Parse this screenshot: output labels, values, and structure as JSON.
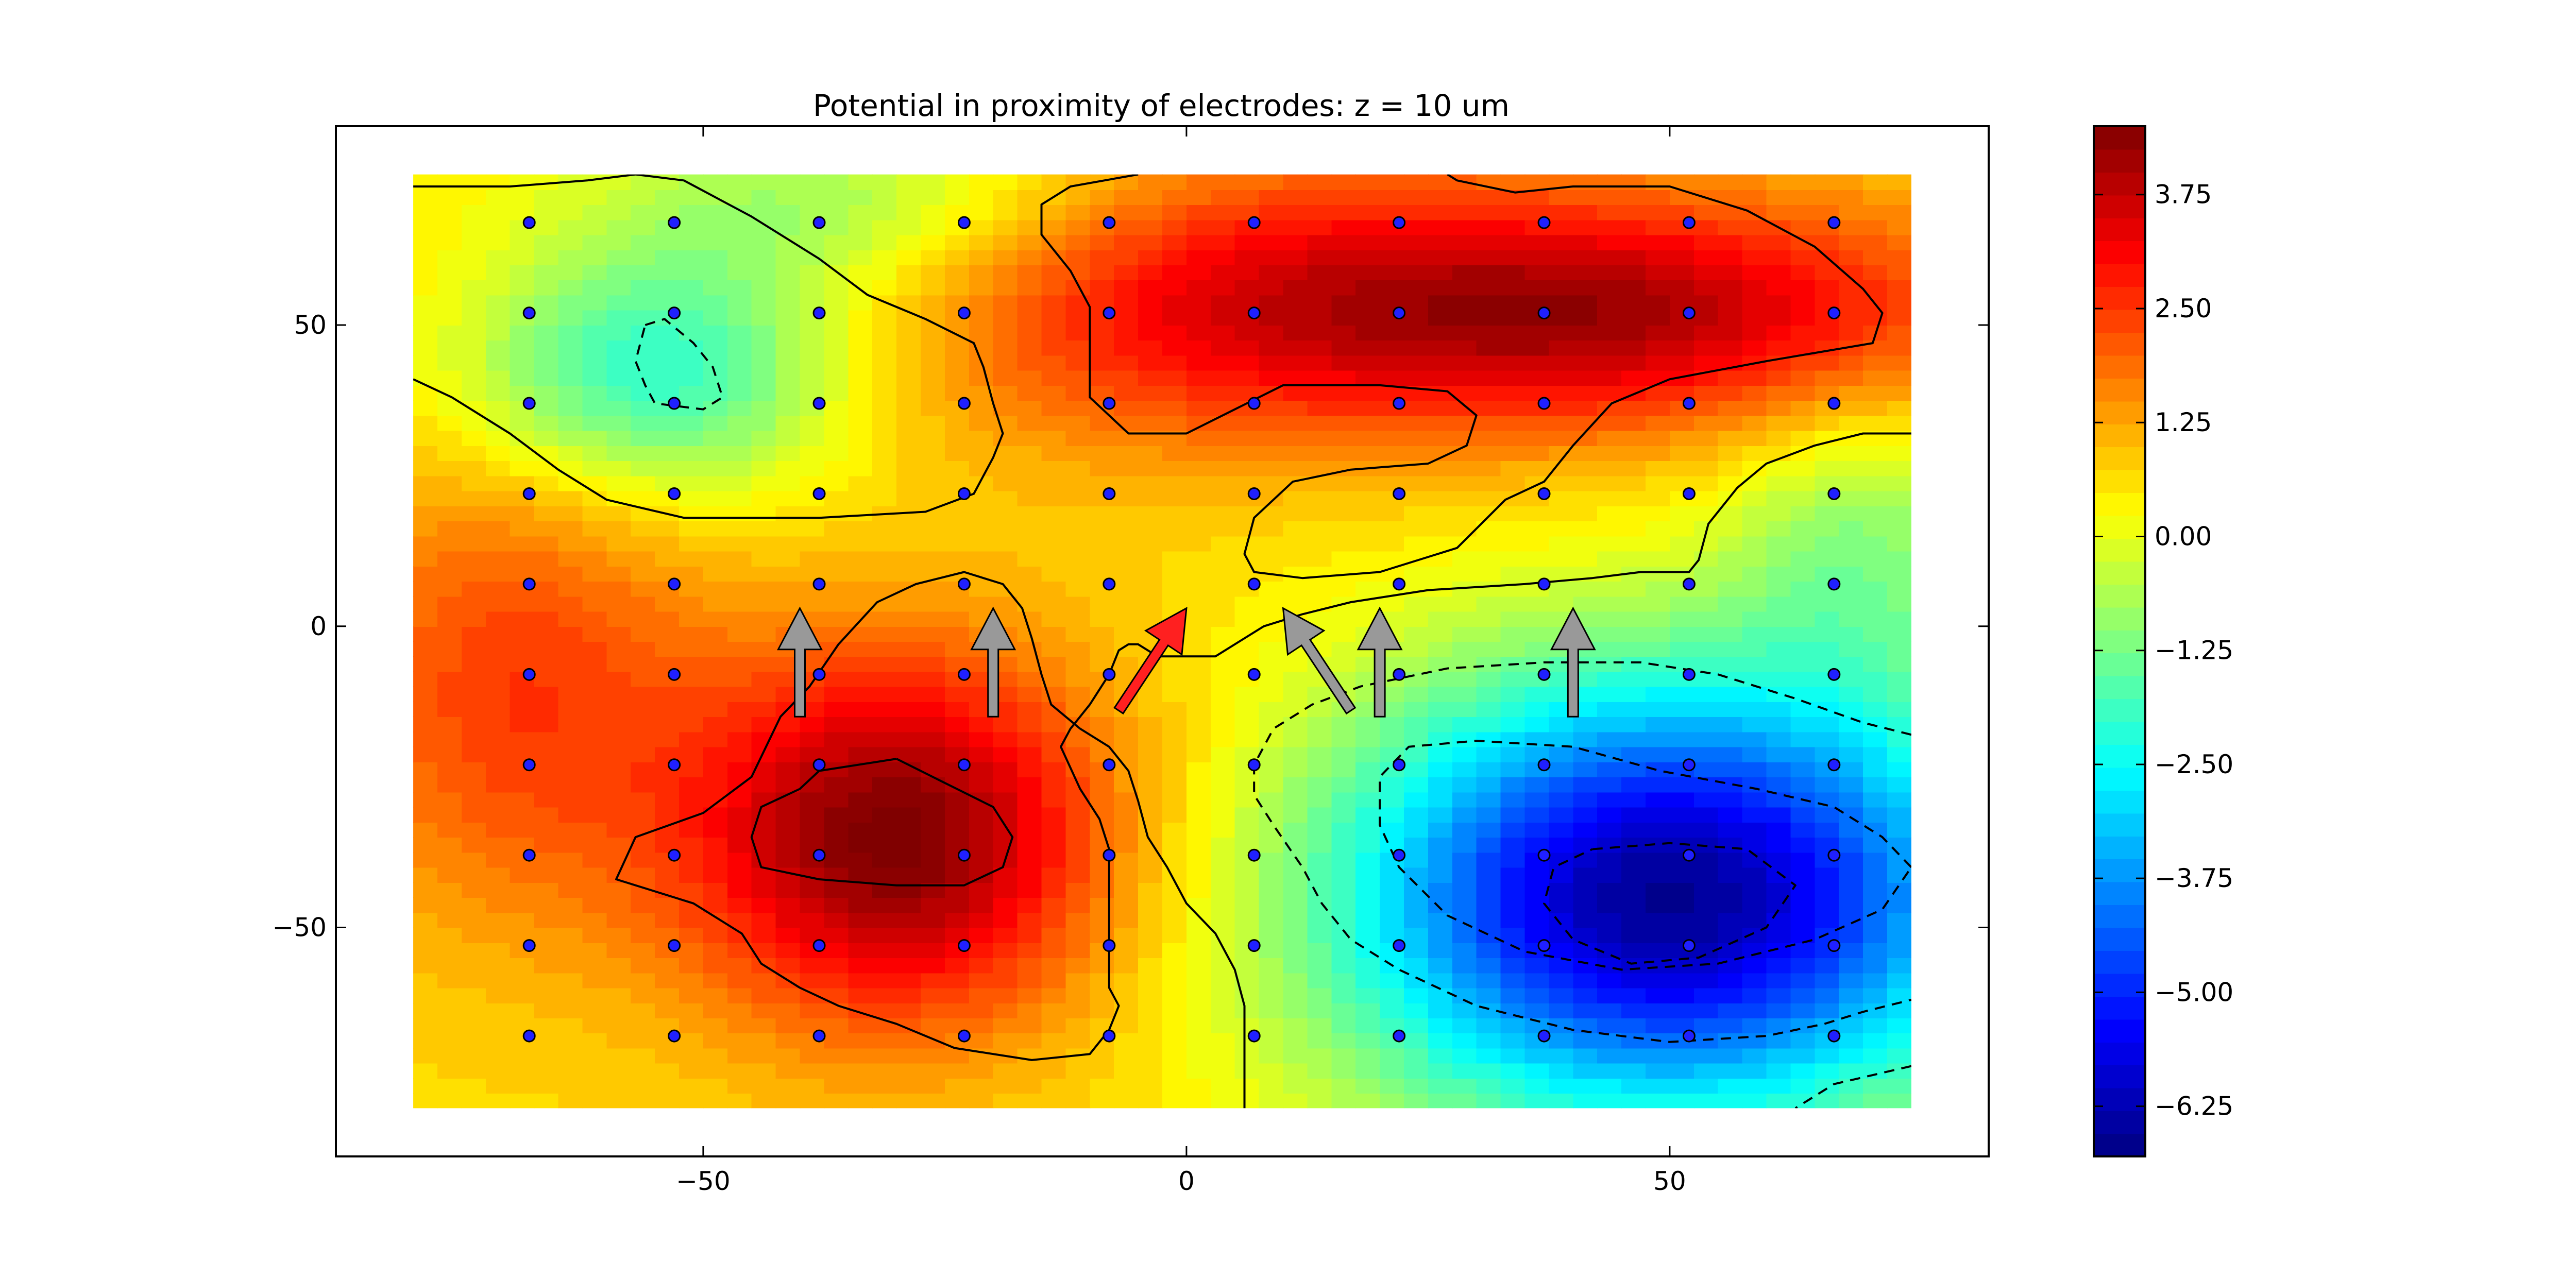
{
  "chart_data": {
    "type": "heatmap",
    "title": "Potential in proximity of electrodes: z = 10 um",
    "xlabel": "",
    "ylabel": "",
    "xlim": [
      -88,
      83
    ],
    "ylim": [
      -88,
      83
    ],
    "field_extent": {
      "x": [
        -80,
        75
      ],
      "y": [
        -80,
        75
      ]
    },
    "x_ticks": [
      -50,
      0,
      50
    ],
    "x_tick_labels": [
      "−50",
      "0",
      "50"
    ],
    "y_ticks": [
      50,
      0,
      -50
    ],
    "y_tick_labels": [
      "50",
      "0",
      "−50"
    ],
    "colorbar": {
      "range": [
        -6.8,
        4.5
      ],
      "ticks": [
        3.75,
        2.5,
        1.25,
        0.0,
        -1.25,
        -2.5,
        -3.75,
        -5.0,
        -6.25
      ],
      "tick_labels": [
        "3.75",
        "2.50",
        "1.25",
        "0.00",
        "−1.25",
        "−2.50",
        "−3.75",
        "−5.00",
        "−6.25"
      ],
      "colormap": "jet"
    },
    "extrema": [
      {
        "x": -30,
        "y": -35,
        "value": 4.4,
        "kind": "max"
      },
      {
        "x": 50,
        "y": 52,
        "value": 3.9,
        "kind": "max"
      },
      {
        "x": 50,
        "y": -45,
        "value": -6.4,
        "kind": "min"
      },
      {
        "x": -55,
        "y": 42,
        "value": -2.3,
        "kind": "min"
      }
    ],
    "electrode_grid": {
      "x": [
        -68,
        -53,
        -38,
        -23,
        -8,
        7,
        22,
        37,
        52,
        67
      ],
      "y": [
        67,
        52,
        37,
        22,
        7,
        -8,
        -23,
        -38,
        -53,
        -68
      ]
    },
    "arrows": [
      {
        "x": -40,
        "y_tail": -15,
        "y_head": 3,
        "color": "#999999"
      },
      {
        "x": -20,
        "y_tail": -15,
        "y_head": 3,
        "color": "#999999"
      },
      {
        "x": 20,
        "y_tail": -15,
        "y_head": 3,
        "color": "#999999"
      },
      {
        "x": 40,
        "y_tail": -15,
        "y_head": 3,
        "color": "#999999"
      },
      {
        "x_tail": 17,
        "y_tail": -14,
        "x_head": 10,
        "y_head": 3,
        "color": "#999999"
      },
      {
        "x_tail": -7,
        "y_tail": -14,
        "x_head": 0,
        "y_head": 3,
        "color": "#ff2020"
      }
    ],
    "contours": {
      "solid": [
        [
          [
            -80,
            73
          ],
          [
            -70,
            73
          ],
          [
            -62,
            74
          ],
          [
            -57,
            75
          ],
          [
            -52,
            74
          ],
          [
            -45,
            68
          ],
          [
            -38,
            61
          ],
          [
            -33,
            55
          ],
          [
            -27,
            51
          ],
          [
            -22,
            47
          ],
          [
            -21,
            43
          ],
          [
            -20,
            37
          ],
          [
            -19,
            32
          ],
          [
            -20,
            28
          ],
          [
            -22,
            22
          ],
          [
            -27,
            19
          ],
          [
            -38,
            18
          ],
          [
            -52,
            18
          ],
          [
            -60,
            21
          ],
          [
            -65,
            26
          ],
          [
            -70,
            32
          ],
          [
            -76,
            38
          ],
          [
            -80,
            41
          ]
        ],
        [
          [
            -5,
            75
          ],
          [
            -12,
            73
          ],
          [
            -15,
            70
          ],
          [
            -15,
            65
          ],
          [
            -12,
            59
          ],
          [
            -10,
            53
          ],
          [
            -10,
            45
          ],
          [
            -10,
            38
          ],
          [
            -6,
            32
          ],
          [
            0,
            32
          ],
          [
            5,
            36
          ],
          [
            10,
            40
          ],
          [
            20,
            40
          ],
          [
            27,
            39
          ],
          [
            30,
            35
          ],
          [
            29,
            30
          ],
          [
            25,
            27
          ],
          [
            17,
            26
          ],
          [
            11,
            24
          ],
          [
            7,
            18
          ],
          [
            6,
            12
          ],
          [
            7,
            9
          ],
          [
            12,
            8
          ],
          [
            20,
            9
          ],
          [
            28,
            13
          ],
          [
            33,
            21
          ],
          [
            37,
            24
          ],
          [
            40,
            30
          ],
          [
            44,
            37
          ],
          [
            50,
            41
          ],
          [
            60,
            44
          ],
          [
            71,
            47
          ],
          [
            72,
            52
          ],
          [
            70,
            56
          ],
          [
            65,
            63
          ],
          [
            58,
            69
          ],
          [
            50,
            73
          ],
          [
            40,
            73
          ],
          [
            34,
            72
          ],
          [
            28,
            74
          ],
          [
            27,
            75
          ]
        ],
        [
          [
            75,
            32
          ],
          [
            70,
            32
          ],
          [
            65,
            30
          ],
          [
            60,
            27
          ],
          [
            57,
            23
          ],
          [
            54,
            17
          ],
          [
            53,
            11
          ],
          [
            52,
            9
          ],
          [
            47,
            9
          ],
          [
            42,
            8
          ],
          [
            35,
            7
          ],
          [
            25,
            6
          ],
          [
            17,
            4
          ],
          [
            12,
            2
          ],
          [
            8,
            0
          ],
          [
            3,
            -5
          ],
          [
            0,
            -5
          ],
          [
            -3,
            -5
          ],
          [
            -5,
            -3
          ],
          [
            -6,
            -3
          ],
          [
            -7,
            -4
          ],
          [
            -8,
            -8
          ],
          [
            -10,
            -13
          ],
          [
            -12,
            -17
          ],
          [
            -13,
            -20
          ],
          [
            -11,
            -27
          ],
          [
            -9,
            -32
          ],
          [
            -8,
            -37
          ],
          [
            -8,
            -44
          ],
          [
            -8,
            -53
          ],
          [
            -8,
            -60
          ],
          [
            -7,
            -63
          ],
          [
            -8,
            -67
          ],
          [
            -10,
            -71
          ],
          [
            -16,
            -72
          ],
          [
            -24,
            -70
          ],
          [
            -30,
            -66
          ],
          [
            -36,
            -63
          ],
          [
            -40,
            -60
          ],
          [
            -44,
            -56
          ],
          [
            -46,
            -51
          ],
          [
            -51,
            -46
          ],
          [
            -55,
            -44
          ],
          [
            -59,
            -42
          ],
          [
            -57,
            -35
          ],
          [
            -50,
            -31
          ],
          [
            -45,
            -25
          ],
          [
            -42,
            -15
          ],
          [
            -39,
            -10
          ],
          [
            -36,
            -3
          ],
          [
            -32,
            4
          ],
          [
            -28,
            7
          ],
          [
            -23,
            9
          ],
          [
            -19,
            7
          ],
          [
            -17,
            3
          ],
          [
            -16,
            -2
          ],
          [
            -15,
            -8
          ],
          [
            -14,
            -13
          ],
          [
            -11,
            -17
          ],
          [
            -8,
            -20
          ],
          [
            -6,
            -24
          ],
          [
            -5,
            -29
          ],
          [
            -4,
            -35
          ],
          [
            -2,
            -40
          ],
          [
            0,
            -46
          ],
          [
            3,
            -51
          ],
          [
            5,
            -57
          ],
          [
            6,
            -63
          ],
          [
            6,
            -70
          ],
          [
            6,
            -75
          ],
          [
            6,
            -80
          ]
        ],
        [
          [
            -30,
            -22
          ],
          [
            -38,
            -24
          ],
          [
            -40,
            -27
          ],
          [
            -44,
            -30
          ],
          [
            -45,
            -35
          ],
          [
            -44,
            -40
          ],
          [
            -38,
            -42
          ],
          [
            -30,
            -43
          ],
          [
            -23,
            -43
          ],
          [
            -19,
            -40
          ],
          [
            -18,
            -35
          ],
          [
            -20,
            -30
          ],
          [
            -25,
            -26
          ],
          [
            -30,
            -22
          ]
        ]
      ],
      "dashed": [
        [
          [
            -56,
            50
          ],
          [
            -54,
            51
          ],
          [
            -51,
            47
          ],
          [
            -49,
            43
          ],
          [
            -48,
            38
          ],
          [
            -50,
            36
          ],
          [
            -55,
            37
          ],
          [
            -56,
            40
          ],
          [
            -57,
            44
          ],
          [
            -56,
            50
          ]
        ],
        [
          [
            75,
            -18
          ],
          [
            70,
            -16
          ],
          [
            63,
            -12
          ],
          [
            55,
            -8
          ],
          [
            47,
            -6
          ],
          [
            37,
            -6
          ],
          [
            27,
            -7
          ],
          [
            18,
            -10
          ],
          [
            13,
            -13
          ],
          [
            9,
            -17
          ],
          [
            7,
            -23
          ],
          [
            7,
            -28
          ],
          [
            9,
            -33
          ],
          [
            12,
            -40
          ],
          [
            14,
            -46
          ],
          [
            17,
            -52
          ],
          [
            22,
            -57
          ],
          [
            30,
            -63
          ],
          [
            40,
            -67
          ],
          [
            50,
            -69
          ],
          [
            60,
            -68
          ],
          [
            66,
            -66
          ],
          [
            70,
            -64
          ],
          [
            75,
            -62
          ]
        ],
        [
          [
            75,
            -40
          ],
          [
            72,
            -35
          ],
          [
            67,
            -30
          ],
          [
            59,
            -27
          ],
          [
            49,
            -24
          ],
          [
            40,
            -20
          ],
          [
            30,
            -19
          ],
          [
            23,
            -20
          ],
          [
            20,
            -25
          ],
          [
            20,
            -33
          ],
          [
            22,
            -40
          ],
          [
            27,
            -48
          ],
          [
            35,
            -54
          ],
          [
            45,
            -57
          ],
          [
            55,
            -56
          ],
          [
            65,
            -52
          ],
          [
            72,
            -47
          ],
          [
            75,
            -40
          ]
        ],
        [
          [
            42,
            -37
          ],
          [
            50,
            -36
          ],
          [
            58,
            -37
          ],
          [
            63,
            -43
          ],
          [
            60,
            -50
          ],
          [
            53,
            -55
          ],
          [
            46,
            -56
          ],
          [
            40,
            -52
          ],
          [
            37,
            -46
          ],
          [
            38,
            -40
          ],
          [
            42,
            -37
          ]
        ],
        [
          [
            75,
            -73
          ],
          [
            67,
            -76
          ],
          [
            63,
            -80
          ]
        ]
      ]
    }
  }
}
